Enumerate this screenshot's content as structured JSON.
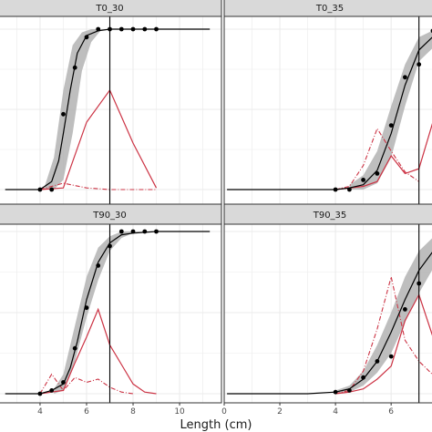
{
  "chart_data": {
    "type": "line",
    "xlabel": "Length (cm)",
    "x_ticks_left": [
      4,
      6,
      8,
      10
    ],
    "x_ticks_right": [
      0,
      2,
      4,
      6
    ],
    "xlim_left": [
      2.2,
      11.8
    ],
    "xlim_right": [
      0.0,
      7.6
    ],
    "colors": {
      "fit": "#000000",
      "band": "#b3b3b3",
      "red": "#cc3344",
      "strip": "#d9d9d9",
      "grid": "#ebebeb",
      "panel_border": "#333333"
    },
    "panels": [
      {
        "title": "T0_30",
        "vline": 7,
        "fit": {
          "x": [
            2.5,
            4.0,
            4.5,
            4.8,
            5.0,
            5.3,
            5.6,
            6.0,
            6.5,
            7.0,
            8.0,
            9.0,
            10.0,
            11.3
          ],
          "y": [
            0.0,
            0.0,
            0.05,
            0.18,
            0.35,
            0.62,
            0.85,
            0.96,
            0.99,
            1.0,
            1.0,
            1.0,
            1.0,
            1.0
          ]
        },
        "band_upper": {
          "x": [
            4.2,
            4.6,
            5.0,
            5.4,
            5.8,
            6.2,
            6.6,
            7.0
          ],
          "y": [
            0.02,
            0.2,
            0.62,
            0.9,
            0.98,
            1.0,
            1.0,
            1.0
          ]
        },
        "band_lower": {
          "x": [
            4.2,
            4.6,
            5.0,
            5.4,
            5.8,
            6.2,
            6.6,
            7.0
          ],
          "y": [
            0.0,
            0.0,
            0.06,
            0.35,
            0.74,
            0.92,
            0.99,
            1.0
          ]
        },
        "points": {
          "x": [
            4.0,
            4.5,
            5.0,
            5.5,
            6.0,
            6.5,
            7.0,
            7.5,
            8.0,
            8.5,
            9.0
          ],
          "y": [
            0.0,
            0.0,
            0.47,
            0.76,
            0.95,
            1.0,
            1.0,
            1.0,
            1.0,
            1.0,
            1.0
          ]
        },
        "red_solid": {
          "x": [
            4.0,
            5.0,
            6.0,
            7.0,
            8.0,
            9.0
          ],
          "y": [
            0.0,
            0.01,
            0.42,
            0.62,
            0.29,
            0.01
          ]
        },
        "red_dash": {
          "x": [
            4.0,
            5.0,
            6.0,
            7.0,
            8.0,
            9.0
          ],
          "y": [
            0.0,
            0.04,
            0.01,
            0.0,
            0.0,
            0.0
          ]
        }
      },
      {
        "title": "T0_35",
        "vline": 7,
        "fit": {
          "x": [
            0.1,
            4.0,
            4.5,
            5.0,
            5.5,
            6.0,
            6.5,
            7.0,
            7.6
          ],
          "y": [
            0.0,
            0.0,
            0.01,
            0.03,
            0.12,
            0.35,
            0.65,
            0.87,
            0.97
          ]
        },
        "band_upper": {
          "x": [
            4.5,
            5.0,
            5.5,
            6.0,
            6.5,
            7.0,
            7.6
          ],
          "y": [
            0.03,
            0.09,
            0.24,
            0.52,
            0.78,
            0.95,
            1.0
          ]
        },
        "band_lower": {
          "x": [
            4.5,
            5.0,
            5.5,
            6.0,
            6.5,
            7.0,
            7.6
          ],
          "y": [
            0.0,
            0.0,
            0.04,
            0.2,
            0.52,
            0.8,
            0.9
          ]
        },
        "points": {
          "x": [
            4.0,
            4.5,
            5.0,
            5.5,
            6.0,
            6.5,
            7.0,
            7.5
          ],
          "y": [
            0.0,
            0.0,
            0.06,
            0.1,
            0.4,
            0.7,
            0.78,
            0.99
          ]
        },
        "red_solid": {
          "x": [
            4.0,
            5.0,
            5.5,
            6.0,
            6.5,
            7.0,
            7.5
          ],
          "y": [
            0.0,
            0.02,
            0.05,
            0.21,
            0.1,
            0.13,
            0.42
          ]
        },
        "red_dash": {
          "x": [
            4.0,
            4.5,
            5.0,
            5.5,
            6.0,
            6.5,
            7.0
          ],
          "y": [
            0.0,
            0.02,
            0.15,
            0.38,
            0.24,
            0.11,
            0.05
          ]
        }
      },
      {
        "title": "T90_30",
        "vline": 7,
        "fit": {
          "x": [
            2.5,
            4.0,
            4.5,
            5.0,
            5.3,
            5.6,
            6.0,
            6.5,
            7.0,
            7.5,
            8.0,
            9.0,
            10.0,
            11.3
          ],
          "y": [
            0.0,
            0.0,
            0.02,
            0.06,
            0.16,
            0.32,
            0.58,
            0.81,
            0.93,
            0.98,
            0.99,
            1.0,
            1.0,
            1.0
          ]
        },
        "band_upper": {
          "x": [
            4.6,
            5.0,
            5.5,
            6.0,
            6.5,
            7.0,
            7.5,
            8.0,
            8.5
          ],
          "y": [
            0.03,
            0.12,
            0.42,
            0.72,
            0.9,
            0.97,
            1.0,
            1.0,
            1.0
          ]
        },
        "band_lower": {
          "x": [
            4.6,
            5.0,
            5.5,
            6.0,
            6.5,
            7.0,
            7.5,
            8.0,
            8.5
          ],
          "y": [
            0.0,
            0.02,
            0.2,
            0.47,
            0.7,
            0.88,
            0.96,
            0.99,
            1.0
          ]
        },
        "points": {
          "x": [
            4.0,
            4.5,
            5.0,
            5.5,
            6.0,
            6.5,
            7.0,
            7.5,
            8.0,
            8.5,
            9.0
          ],
          "y": [
            0.0,
            0.02,
            0.07,
            0.28,
            0.53,
            0.79,
            0.91,
            1.0,
            1.0,
            1.0,
            1.0
          ]
        },
        "red_solid": {
          "x": [
            4.0,
            4.5,
            5.0,
            5.5,
            6.0,
            6.5,
            7.0,
            7.5,
            8.0,
            8.5,
            9.0
          ],
          "y": [
            0.0,
            0.01,
            0.02,
            0.19,
            0.35,
            0.52,
            0.3,
            0.18,
            0.06,
            0.01,
            0.0
          ]
        },
        "red_dash": {
          "x": [
            4.0,
            4.5,
            5.0,
            5.5,
            6.0,
            6.5,
            7.0,
            7.5,
            8.0
          ],
          "y": [
            0.0,
            0.12,
            0.02,
            0.1,
            0.07,
            0.09,
            0.04,
            0.01,
            0.0
          ]
        }
      },
      {
        "title": "T90_35",
        "vline": 7,
        "fit": {
          "x": [
            0.1,
            3.0,
            4.0,
            4.5,
            5.0,
            5.5,
            6.0,
            6.5,
            7.0,
            7.6
          ],
          "y": [
            0.0,
            0.0,
            0.01,
            0.03,
            0.09,
            0.2,
            0.38,
            0.58,
            0.76,
            0.9
          ]
        },
        "band_upper": {
          "x": [
            4.0,
            4.5,
            5.0,
            5.5,
            6.0,
            6.5,
            7.0,
            7.6
          ],
          "y": [
            0.02,
            0.05,
            0.14,
            0.3,
            0.5,
            0.72,
            0.88,
            0.98
          ]
        },
        "band_lower": {
          "x": [
            4.0,
            4.5,
            5.0,
            5.5,
            6.0,
            6.5,
            7.0,
            7.6
          ],
          "y": [
            0.0,
            0.01,
            0.05,
            0.13,
            0.25,
            0.44,
            0.62,
            0.8
          ]
        },
        "points": {
          "x": [
            4.0,
            4.5,
            5.0,
            5.5,
            6.0,
            6.5,
            7.0
          ],
          "y": [
            0.01,
            0.02,
            0.1,
            0.2,
            0.23,
            0.52,
            0.68
          ]
        },
        "red_solid": {
          "x": [
            4.0,
            4.5,
            5.0,
            5.5,
            6.0,
            6.5,
            7.0,
            7.6
          ],
          "y": [
            0.0,
            0.01,
            0.03,
            0.09,
            0.17,
            0.45,
            0.61,
            0.3
          ]
        },
        "red_dash": {
          "x": [
            4.0,
            4.5,
            5.0,
            5.5,
            6.0,
            6.5,
            7.0,
            7.6
          ],
          "y": [
            0.0,
            0.02,
            0.14,
            0.4,
            0.72,
            0.33,
            0.2,
            0.1
          ]
        }
      }
    ]
  }
}
